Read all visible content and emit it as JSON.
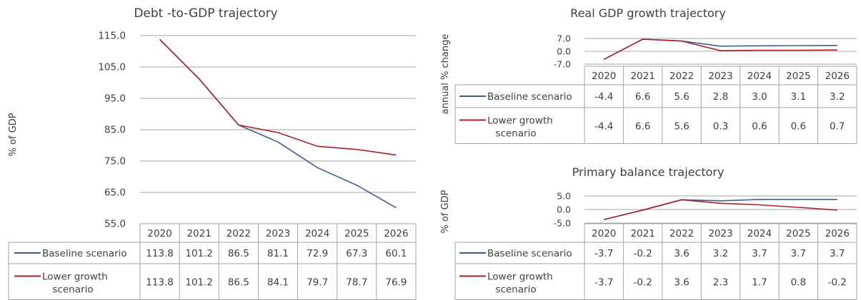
{
  "colors": {
    "baseline": "#3d5f93",
    "lower": "#aa1f2e",
    "grid": "#a6a6a6",
    "text": "#404040"
  },
  "chart_data": [
    {
      "id": "debt",
      "type": "line",
      "title": "Debt -to-GDP trajectory",
      "ylabel": "% of GDP",
      "xlabel": "",
      "ylim": [
        55,
        115
      ],
      "yticks": [
        "115.0",
        "105.0",
        "95.0",
        "85.0",
        "75.0",
        "65.0",
        "55.0"
      ],
      "ytick_values": [
        115,
        105,
        95,
        85,
        75,
        65,
        55
      ],
      "categories": [
        "2020",
        "2021",
        "2022",
        "2023",
        "2024",
        "2025",
        "2026"
      ],
      "grid": true,
      "legend": "data-table",
      "series": [
        {
          "name": "Baseline scenario",
          "values": [
            113.8,
            101.2,
            86.5,
            81.1,
            72.9,
            67.3,
            60.1
          ],
          "labels": [
            "113.8",
            "101.2",
            "86.5",
            "81.1",
            "72.9",
            "67.3",
            "60.1"
          ]
        },
        {
          "name": "Lower growth scenario",
          "name_lines": [
            "Lower growth",
            "scenario"
          ],
          "values": [
            113.8,
            101.2,
            86.5,
            84.1,
            79.7,
            78.7,
            76.9
          ],
          "labels": [
            "113.8",
            "101.2",
            "86.5",
            "84.1",
            "79.7",
            "78.7",
            "76.9"
          ]
        }
      ]
    },
    {
      "id": "gdp",
      "type": "line",
      "title": "Real GDP growth trajectory",
      "ylabel": "annual % change",
      "xlabel": "",
      "ylim": [
        -7,
        7
      ],
      "yticks": [
        "7.0",
        "0.0",
        "-7.0"
      ],
      "ytick_values": [
        7,
        0,
        -7
      ],
      "categories": [
        "2020",
        "2021",
        "2022",
        "2023",
        "2024",
        "2025",
        "2026"
      ],
      "grid": true,
      "legend": "data-table",
      "series": [
        {
          "name": "Baseline scenario",
          "values": [
            -4.4,
            6.6,
            5.6,
            2.8,
            3.0,
            3.1,
            3.2
          ],
          "labels": [
            "-4.4",
            "6.6",
            "5.6",
            "2.8",
            "3.0",
            "3.1",
            "3.2"
          ]
        },
        {
          "name": "Lower growth scenario",
          "name_lines": [
            "Lower growth",
            "scenario"
          ],
          "values": [
            -4.4,
            6.6,
            5.6,
            0.3,
            0.6,
            0.6,
            0.7
          ],
          "labels": [
            "-4.4",
            "6.6",
            "5.6",
            "0.3",
            "0.6",
            "0.6",
            "0.7"
          ]
        }
      ]
    },
    {
      "id": "pb",
      "type": "line",
      "title": "Primary balance trajectory",
      "ylabel": "% of GDP",
      "xlabel": "",
      "ylim": [
        -5,
        5
      ],
      "yticks": [
        "5.0",
        "0.0",
        "-5.0"
      ],
      "ytick_values": [
        5,
        0,
        -5
      ],
      "categories": [
        "2020",
        "2021",
        "2022",
        "2023",
        "2024",
        "2025",
        "2026"
      ],
      "grid": true,
      "legend": "data-table",
      "series": [
        {
          "name": "Baseline scenario",
          "values": [
            -3.7,
            -0.2,
            3.6,
            3.2,
            3.7,
            3.7,
            3.7
          ],
          "labels": [
            "-3.7",
            "-0.2",
            "3.6",
            "3.2",
            "3.7",
            "3.7",
            "3.7"
          ]
        },
        {
          "name": "Lower growth scenario",
          "name_lines": [
            "Lower growth",
            "scenario"
          ],
          "values": [
            -3.7,
            -0.2,
            3.6,
            2.3,
            1.7,
            0.8,
            -0.2
          ],
          "labels": [
            "-3.7",
            "-0.2",
            "3.6",
            "2.3",
            "1.7",
            "0.8",
            "-0.2"
          ]
        }
      ]
    }
  ]
}
